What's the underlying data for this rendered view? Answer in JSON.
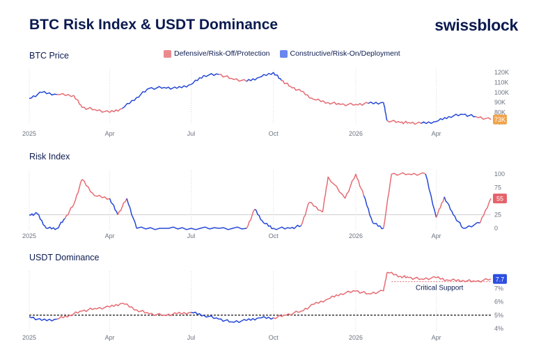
{
  "header": {
    "title": "BTC Risk Index & USDT Dominance",
    "brand": "swissblock"
  },
  "legend": {
    "defensive": {
      "label": "Defensive/Risk-Off/Protection",
      "color": "#ea8a8f"
    },
    "constructive": {
      "label": "Constructive/Risk-On/Deployment",
      "color": "#6b86f0"
    }
  },
  "colors": {
    "red": "#e56b73",
    "blue": "#2346d6",
    "grid": "#d8d8d8",
    "text": "#0b1a4f",
    "btc_badge": "#f2a44c",
    "risk_badge": "#e5636b",
    "usdt_badge": "#2d4fe0"
  },
  "x_ticks": [
    "2025",
    "Apr",
    "Jul",
    "Oct",
    "2026",
    "Apr"
  ],
  "chart_data": [
    {
      "type": "line",
      "title": "BTC Price",
      "y_ticks": [
        "120K",
        "110K",
        "100K",
        "90K",
        "80K",
        "70K"
      ],
      "ylim": [
        70,
        120
      ],
      "last_value_label": "73K",
      "x": [
        "2025-01",
        "2025-01-15",
        "2025-02",
        "2025-02-20",
        "2025-03",
        "2025-03-15",
        "2025-04",
        "2025-04-15",
        "2025-05",
        "2025-05-15",
        "2025-06",
        "2025-06-15",
        "2025-07",
        "2025-07-15",
        "2025-08",
        "2025-08-15",
        "2025-09",
        "2025-09-15",
        "2025-10",
        "2025-10-10",
        "2025-10-20",
        "2025-11",
        "2025-11-15",
        "2025-12",
        "2025-12-15",
        "2026-01",
        "2026-01-15",
        "2026-02",
        "2026-02-05",
        "2026-02-20",
        "2026-03",
        "2026-03-15",
        "2026-04",
        "2026-04-15",
        "2026-05",
        "2026-05-15",
        "2026-06"
      ],
      "series": [
        {
          "values": [
            94,
            100,
            98,
            97,
            85,
            83,
            80,
            84,
            95,
            104,
            105,
            104,
            108,
            117,
            118,
            114,
            111,
            115,
            120,
            112,
            106,
            101,
            93,
            90,
            88,
            88,
            89,
            90,
            72,
            70,
            70,
            69,
            71,
            76,
            78,
            76,
            73
          ],
          "regime": [
            "blue",
            "blue",
            "blue",
            "red",
            "red",
            "red",
            "red",
            "red",
            "blue",
            "blue",
            "blue",
            "blue",
            "blue",
            "blue",
            "blue",
            "red",
            "red",
            "blue",
            "blue",
            "blue",
            "red",
            "red",
            "red",
            "red",
            "red",
            "red",
            "red",
            "blue",
            "blue",
            "red",
            "red",
            "red",
            "blue",
            "blue",
            "blue",
            "blue",
            "red"
          ]
        }
      ]
    },
    {
      "type": "line",
      "title": "Risk Index",
      "y_ticks": [
        "100",
        "75",
        "50",
        "25",
        "0"
      ],
      "ylim": [
        0,
        100
      ],
      "reference_line": 25,
      "last_value_label": "55",
      "x": [
        "2025-01",
        "2025-01-10",
        "2025-01-20",
        "2025-02",
        "2025-02-10",
        "2025-02-20",
        "2025-03",
        "2025-03-15",
        "2025-04",
        "2025-04-10",
        "2025-04-20",
        "2025-05",
        "2025-06",
        "2025-07",
        "2025-08",
        "2025-09",
        "2025-09-10",
        "2025-09-20",
        "2025-10",
        "2025-10-20",
        "2025-11",
        "2025-11-10",
        "2025-11-25",
        "2025-12",
        "2025-12-20",
        "2026-01",
        "2026-01-10",
        "2026-01-20",
        "2026-02",
        "2026-02-10",
        "2026-03",
        "2026-03-20",
        "2026-04",
        "2026-04-10",
        "2026-04-20",
        "2026-05",
        "2026-05-20",
        "2026-06"
      ],
      "series": [
        {
          "values": [
            25,
            27,
            0,
            0,
            18,
            45,
            90,
            60,
            55,
            25,
            55,
            0,
            0,
            0,
            0,
            0,
            35,
            10,
            0,
            0,
            5,
            48,
            30,
            95,
            55,
            100,
            60,
            10,
            0,
            100,
            100,
            100,
            20,
            58,
            25,
            0,
            10,
            55
          ],
          "regime": [
            "blue",
            "blue",
            "blue",
            "blue",
            "blue",
            "red",
            "red",
            "red",
            "red",
            "blue",
            "red",
            "blue",
            "blue",
            "blue",
            "blue",
            "blue",
            "red",
            "blue",
            "blue",
            "blue",
            "blue",
            "red",
            "red",
            "red",
            "red",
            "red",
            "red",
            "blue",
            "blue",
            "red",
            "red",
            "red",
            "blue",
            "red",
            "blue",
            "blue",
            "blue",
            "red"
          ]
        }
      ]
    },
    {
      "type": "line",
      "title": "USDT Dominance",
      "y_ticks": [
        "7%",
        "6%",
        "5%",
        "4%"
      ],
      "ylim": [
        4,
        8
      ],
      "reference_line": 5,
      "annotation": "Critical Support",
      "annotation_level": 7.5,
      "last_value_label": "7.7",
      "x": [
        "2025-01",
        "2025-01-15",
        "2025-02",
        "2025-02-15",
        "2025-03",
        "2025-03-15",
        "2025-04",
        "2025-04-15",
        "2025-05",
        "2025-05-15",
        "2025-06",
        "2025-06-15",
        "2025-07",
        "2025-07-15",
        "2025-08",
        "2025-08-15",
        "2025-09",
        "2025-09-15",
        "2025-10",
        "2025-10-15",
        "2025-11",
        "2025-11-15",
        "2025-12",
        "2025-12-15",
        "2026-01",
        "2026-01-15",
        "2026-02",
        "2026-02-05",
        "2026-02-20",
        "2026-03",
        "2026-03-15",
        "2026-04",
        "2026-04-15",
        "2026-05",
        "2026-05-15",
        "2026-06"
      ],
      "series": [
        {
          "values": [
            4.9,
            4.6,
            4.7,
            5.0,
            5.3,
            5.5,
            5.6,
            5.9,
            5.4,
            5.1,
            5.0,
            5.1,
            5.2,
            5.0,
            4.7,
            4.5,
            4.6,
            4.8,
            4.8,
            5.0,
            5.3,
            5.8,
            6.2,
            6.6,
            6.8,
            6.6,
            6.8,
            8.2,
            7.9,
            7.8,
            7.7,
            7.8,
            7.6,
            7.6,
            7.5,
            7.7
          ],
          "regime": [
            "blue",
            "blue",
            "blue",
            "red",
            "red",
            "red",
            "red",
            "red",
            "red",
            "red",
            "red",
            "red",
            "red",
            "blue",
            "blue",
            "blue",
            "blue",
            "blue",
            "blue",
            "red",
            "red",
            "red",
            "red",
            "red",
            "red",
            "red",
            "red",
            "red",
            "red",
            "red",
            "red",
            "red",
            "red",
            "red",
            "red",
            "red"
          ]
        }
      ]
    }
  ]
}
